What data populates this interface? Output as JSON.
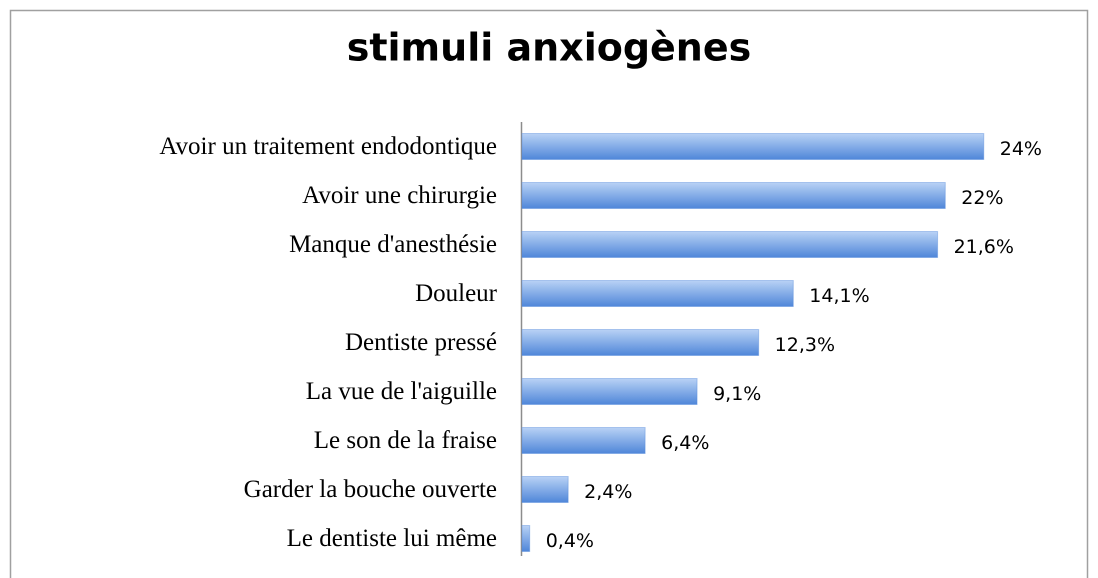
{
  "chart_data": {
    "type": "barh",
    "title": "stimuli anxiogènes",
    "categories": [
      "Avoir un traitement endodontique",
      "Avoir une chirurgie",
      "Manque d'anesthésie",
      "Douleur",
      "Dentiste pressé",
      "La vue de l'aiguille",
      "Le son de la fraise ",
      "Garder la bouche ouverte",
      "Le dentiste lui même"
    ],
    "values": [
      24,
      22,
      21.6,
      14.1,
      12.3,
      9.1,
      6.4,
      2.4,
      0.4
    ],
    "value_labels": [
      "24%",
      "22%",
      "21,6%",
      "14,1%",
      "12,3%",
      "9,1%",
      "6,4%",
      "2,4%",
      "0,4%"
    ],
    "color": "#4f86d9",
    "xlim": [
      0,
      25
    ]
  }
}
